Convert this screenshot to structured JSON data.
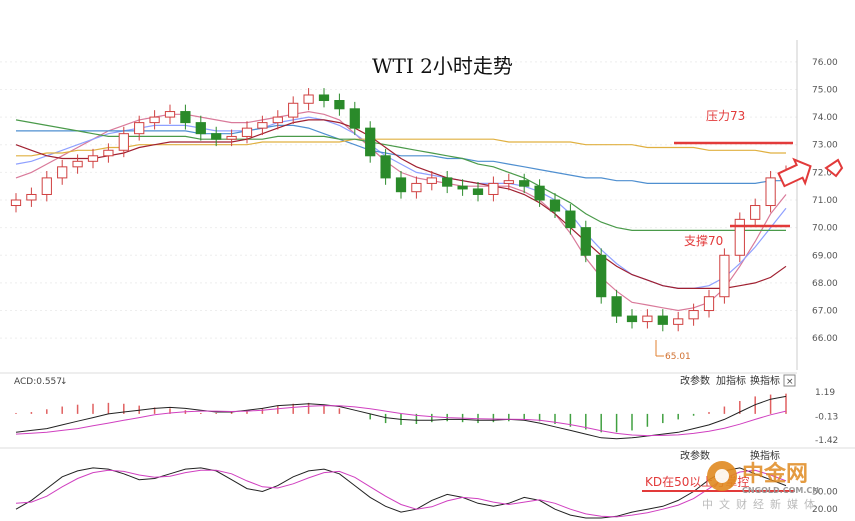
{
  "chart_data": {
    "type": "candlestick",
    "title": "WTI 2小时走势",
    "price_axis": {
      "ticks": [
        "76.00",
        "75.00",
        "74.00",
        "73.00",
        "72.00",
        "71.00",
        "70.00",
        "69.00",
        "68.00",
        "67.00",
        "66.00"
      ],
      "ylim": [
        65.0,
        76.5
      ]
    },
    "annotations": {
      "resistance_label": "压力73",
      "resistance_level": 73.0,
      "support_label": "支撑70",
      "support_level": 70.0,
      "low_label": "65.01",
      "low_value": 65.01
    },
    "close_series": [
      71.0,
      71.2,
      71.8,
      72.2,
      72.4,
      72.6,
      72.8,
      73.4,
      73.8,
      74.0,
      74.2,
      73.8,
      73.4,
      73.2,
      73.3,
      73.6,
      73.8,
      74.0,
      74.5,
      74.8,
      74.6,
      74.3,
      73.6,
      72.6,
      71.8,
      71.3,
      71.6,
      71.8,
      71.5,
      71.4,
      71.2,
      71.6,
      71.7,
      71.5,
      71.0,
      70.6,
      70.0,
      69.0,
      67.5,
      66.8,
      66.6,
      66.8,
      66.5,
      66.7,
      67.0,
      67.5,
      69.0,
      70.3,
      70.8,
      71.8,
      72.0
    ],
    "ma_series": [
      {
        "color": "#d97a9a",
        "values": [
          71.8,
          72.0,
          72.3,
          72.6,
          72.9,
          73.2,
          73.5,
          73.7,
          73.9,
          74.0,
          74.1,
          74.1,
          74.0,
          73.9,
          73.8,
          73.8,
          73.9,
          74.0,
          74.1,
          74.2,
          74.1,
          73.9,
          73.4,
          72.9,
          72.4,
          72.0,
          71.8,
          71.7,
          71.6,
          71.5,
          71.5,
          71.5,
          71.5,
          71.3,
          71.0,
          70.5,
          69.8,
          68.9,
          68.2,
          67.7,
          67.3,
          67.2,
          67.1,
          67.0,
          67.1,
          67.3,
          67.8,
          68.6,
          69.5,
          70.5,
          71.2
        ]
      },
      {
        "color": "#8fa0ff",
        "values": [
          72.3,
          72.4,
          72.6,
          72.8,
          73.0,
          73.2,
          73.4,
          73.5,
          73.6,
          73.7,
          73.7,
          73.7,
          73.6,
          73.5,
          73.5,
          73.5,
          73.6,
          73.8,
          73.9,
          74.0,
          73.9,
          73.7,
          73.4,
          73.0,
          72.6,
          72.3,
          72.0,
          71.9,
          71.8,
          71.7,
          71.6,
          71.6,
          71.6,
          71.5,
          71.3,
          71.0,
          70.5,
          69.8,
          69.2,
          68.7,
          68.3,
          68.1,
          67.9,
          67.8,
          67.8,
          67.9,
          68.2,
          68.7,
          69.3,
          70.0,
          70.7
        ]
      },
      {
        "color": "#4f8fd0",
        "values": [
          73.5,
          73.5,
          73.5,
          73.5,
          73.5,
          73.5,
          73.5,
          73.5,
          73.5,
          73.5,
          73.5,
          73.5,
          73.4,
          73.4,
          73.4,
          73.5,
          73.6,
          73.7,
          73.7,
          73.6,
          73.4,
          73.2,
          73.0,
          72.8,
          72.7,
          72.6,
          72.6,
          72.6,
          72.5,
          72.5,
          72.4,
          72.4,
          72.3,
          72.2,
          72.1,
          72.0,
          71.9,
          71.8,
          71.8,
          71.7,
          71.7,
          71.6,
          71.6,
          71.6,
          71.6,
          71.6,
          71.6,
          71.6,
          71.6,
          71.7,
          71.7
        ]
      },
      {
        "color": "#e0b040",
        "values": [
          72.6,
          72.6,
          72.7,
          72.7,
          72.8,
          72.8,
          72.9,
          72.9,
          73.0,
          73.0,
          73.0,
          73.0,
          73.0,
          73.0,
          73.0,
          73.0,
          73.1,
          73.1,
          73.1,
          73.1,
          73.1,
          73.1,
          73.2,
          73.2,
          73.2,
          73.2,
          73.2,
          73.2,
          73.2,
          73.2,
          73.2,
          73.2,
          73.1,
          73.1,
          73.1,
          73.1,
          73.1,
          73.0,
          73.0,
          73.0,
          73.0,
          72.9,
          72.9,
          72.9,
          72.9,
          72.8,
          72.8,
          72.8,
          72.8,
          72.7,
          72.7
        ]
      },
      {
        "color": "#4a9a4a",
        "values": [
          73.9,
          73.8,
          73.7,
          73.6,
          73.5,
          73.4,
          73.3,
          73.3,
          73.3,
          73.3,
          73.3,
          73.3,
          73.2,
          73.2,
          73.2,
          73.2,
          73.2,
          73.3,
          73.3,
          73.3,
          73.3,
          73.2,
          73.2,
          73.1,
          73.0,
          72.9,
          72.8,
          72.7,
          72.6,
          72.5,
          72.3,
          72.2,
          72.0,
          71.8,
          71.5,
          71.2,
          70.9,
          70.5,
          70.2,
          70.0,
          69.9,
          69.9,
          69.9,
          69.9,
          69.9,
          69.9,
          69.9,
          69.9,
          69.9,
          69.9,
          69.9
        ]
      },
      {
        "color": "#a02030",
        "values": [
          73.0,
          72.8,
          72.6,
          72.5,
          72.5,
          72.5,
          72.6,
          72.7,
          72.9,
          73.0,
          73.1,
          73.1,
          73.1,
          73.1,
          73.1,
          73.2,
          73.4,
          73.6,
          73.8,
          73.9,
          73.9,
          73.8,
          73.6,
          73.3,
          72.9,
          72.5,
          72.2,
          72.0,
          71.8,
          71.7,
          71.6,
          71.5,
          71.4,
          71.2,
          70.9,
          70.5,
          70.0,
          69.5,
          69.0,
          68.6,
          68.3,
          68.1,
          67.9,
          67.8,
          67.8,
          67.8,
          67.8,
          67.9,
          68.0,
          68.2,
          68.6
        ]
      }
    ],
    "macd": {
      "label": "ACD:0.557",
      "ticks": [
        "1.19",
        "-0.13",
        "-1.42"
      ],
      "ylim": [
        -1.42,
        1.19
      ],
      "hist": [
        0.05,
        0.1,
        0.25,
        0.4,
        0.5,
        0.55,
        0.6,
        0.55,
        0.45,
        0.35,
        0.3,
        0.2,
        0.05,
        0.05,
        0.1,
        0.2,
        0.3,
        0.45,
        0.55,
        0.6,
        0.5,
        0.3,
        0.0,
        -0.3,
        -0.5,
        -0.6,
        -0.55,
        -0.45,
        -0.4,
        -0.45,
        -0.5,
        -0.45,
        -0.4,
        -0.35,
        -0.4,
        -0.55,
        -0.7,
        -0.85,
        -1.0,
        -1.0,
        -0.9,
        -0.7,
        -0.5,
        -0.3,
        -0.1,
        0.1,
        0.4,
        0.7,
        0.95,
        1.05,
        1.1
      ],
      "dif": [
        -1.0,
        -0.9,
        -0.8,
        -0.6,
        -0.4,
        -0.2,
        0.0,
        0.1,
        0.2,
        0.3,
        0.35,
        0.3,
        0.2,
        0.1,
        0.1,
        0.2,
        0.3,
        0.45,
        0.5,
        0.55,
        0.5,
        0.4,
        0.2,
        0.0,
        -0.2,
        -0.3,
        -0.35,
        -0.35,
        -0.3,
        -0.3,
        -0.35,
        -0.35,
        -0.3,
        -0.35,
        -0.5,
        -0.7,
        -0.9,
        -1.1,
        -1.3,
        -1.35,
        -1.3,
        -1.2,
        -1.1,
        -1.0,
        -0.8,
        -0.6,
        -0.3,
        0.1,
        0.5,
        0.8,
        0.95
      ],
      "dea": [
        -1.1,
        -1.05,
        -1.0,
        -0.9,
        -0.8,
        -0.65,
        -0.5,
        -0.35,
        -0.2,
        -0.05,
        0.05,
        0.12,
        0.15,
        0.15,
        0.13,
        0.15,
        0.2,
        0.28,
        0.35,
        0.42,
        0.45,
        0.44,
        0.38,
        0.28,
        0.15,
        0.02,
        -0.08,
        -0.15,
        -0.2,
        -0.23,
        -0.26,
        -0.28,
        -0.29,
        -0.3,
        -0.35,
        -0.45,
        -0.58,
        -0.74,
        -0.92,
        -1.06,
        -1.15,
        -1.18,
        -1.17,
        -1.14,
        -1.06,
        -0.94,
        -0.78,
        -0.56,
        -0.3,
        -0.05,
        0.15
      ]
    },
    "kd": {
      "ticks": [
        "50.00",
        "20.00"
      ],
      "k": [
        20,
        35,
        55,
        75,
        85,
        90,
        88,
        80,
        70,
        72,
        80,
        88,
        90,
        85,
        70,
        55,
        50,
        60,
        75,
        85,
        88,
        80,
        60,
        40,
        25,
        15,
        20,
        35,
        45,
        40,
        30,
        25,
        30,
        40,
        35,
        20,
        10,
        5,
        5,
        8,
        15,
        20,
        25,
        35,
        50,
        70,
        85,
        90,
        80,
        70,
        60
      ],
      "d": [
        30,
        32,
        42,
        58,
        72,
        82,
        86,
        84,
        78,
        74,
        76,
        82,
        86,
        86,
        80,
        68,
        58,
        56,
        63,
        73,
        82,
        84,
        74,
        58,
        42,
        28,
        20,
        24,
        34,
        40,
        38,
        32,
        28,
        32,
        36,
        30,
        20,
        12,
        8,
        7,
        10,
        14,
        20,
        27,
        38,
        55,
        72,
        83,
        86,
        78,
        68
      ],
      "annotation": "KD在50以上方掌控"
    },
    "controls": {
      "params": "改参数",
      "add_indicator": "加指标",
      "switch_indicator": "换指标",
      "close_symbol": "×"
    },
    "watermark": {
      "brand": "中金网",
      "domain": "CNGOLD.COM.CN",
      "subtitle": "中文财经新媒体"
    }
  }
}
